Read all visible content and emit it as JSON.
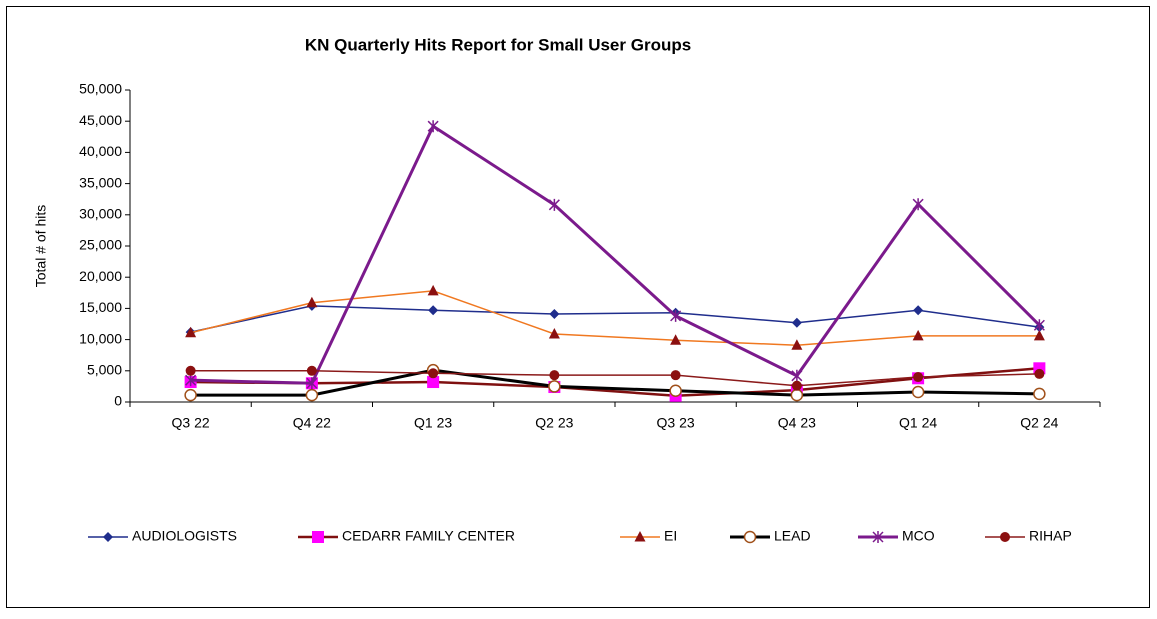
{
  "chart_data": {
    "type": "line",
    "title": "KN Quarterly Hits Report for Small User Groups",
    "y_label": "Total # of hits",
    "categories": [
      "Q3 22",
      "Q4 22",
      "Q1 23",
      "Q2 23",
      "Q3 23",
      "Q4 23",
      "Q1 24",
      "Q2 24"
    ],
    "ylim": [
      0,
      50000
    ],
    "yticks": [
      0,
      {
        "value": 5000,
        "label": "5,000"
      },
      {
        "value": 10000,
        "label": "10,000"
      },
      {
        "value": 15000,
        "label": "15,000"
      },
      {
        "value": 20000,
        "label": "20,000"
      },
      {
        "value": 25000,
        "label": "25,000"
      },
      {
        "value": 30000,
        "label": "30,000"
      },
      {
        "value": 35000,
        "label": "35,000"
      },
      {
        "value": 40000,
        "label": "40,000"
      },
      {
        "value": 45000,
        "label": "45,000"
      },
      {
        "value": 50000,
        "label": "50,000"
      }
    ],
    "grid": false,
    "legend": "bottom",
    "series": [
      {
        "name": "AUDIOLOGISTS",
        "color": "#1f2d8c",
        "marker": "diamond",
        "marker_color": "#1f2d8c",
        "line_width": 1.5,
        "values": [
          11200,
          15400,
          14700,
          14100,
          14300,
          12700,
          14700,
          12000
        ]
      },
      {
        "name": "CEDARR FAMILY CENTER",
        "color": "#7f1010",
        "marker": "square",
        "marker_color": "#ff00ff",
        "line_width": 2.5,
        "values": [
          3200,
          3000,
          3200,
          2400,
          1000,
          1900,
          3800,
          5400
        ]
      },
      {
        "name": "EI",
        "color": "#f07820",
        "marker": "triangle",
        "marker_color": "#8b1010",
        "line_width": 1.5,
        "values": [
          11100,
          15900,
          17800,
          10900,
          9900,
          9100,
          10600,
          10600
        ]
      },
      {
        "name": "LEAD",
        "color": "#000000",
        "marker": "open-circle",
        "marker_color": "#a0501a",
        "line_width": 3,
        "values": [
          1100,
          1100,
          5100,
          2500,
          1800,
          1100,
          1600,
          1300
        ]
      },
      {
        "name": "MCO",
        "color": "#7b1a8c",
        "marker": "asterisk",
        "marker_color": "#7b1a8c",
        "line_width": 3,
        "values": [
          3500,
          3000,
          44200,
          31600,
          13800,
          4200,
          31700,
          12300
        ]
      },
      {
        "name": "RIHAP",
        "color": "#8b1a1a",
        "marker": "circle",
        "marker_color": "#8b1010",
        "line_width": 1.5,
        "values": [
          5000,
          5000,
          4600,
          4300,
          4300,
          2600,
          4000,
          4500
        ]
      }
    ]
  }
}
